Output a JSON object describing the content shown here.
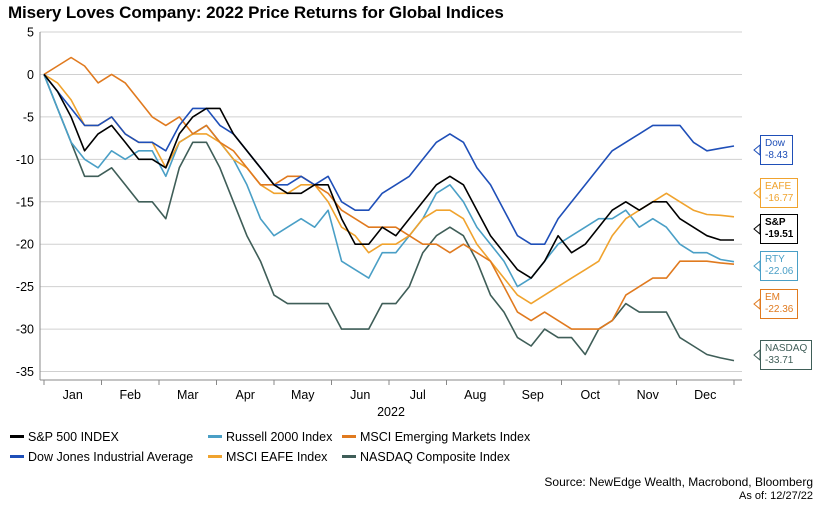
{
  "chart_data": {
    "type": "line",
    "title": "Misery Loves Company: 2022 Price Returns for Global Indices",
    "xlabel": "2022",
    "ylabel": "",
    "ylim": [
      -36,
      5
    ],
    "yticks": [
      5,
      0,
      -5,
      -10,
      -15,
      -20,
      -25,
      -30,
      -35
    ],
    "xticks": [
      "Jan",
      "Feb",
      "Mar",
      "Apr",
      "May",
      "Jun",
      "Jul",
      "Aug",
      "Sep",
      "Oct",
      "Nov",
      "Dec"
    ],
    "x_unit": "week of 2022 (0 = Jan 1, 51 = Dec 27)",
    "x": [
      0,
      1,
      2,
      3,
      4,
      5,
      6,
      7,
      8,
      9,
      10,
      11,
      12,
      13,
      14,
      15,
      16,
      17,
      18,
      19,
      20,
      21,
      22,
      23,
      24,
      25,
      26,
      27,
      28,
      29,
      30,
      31,
      32,
      33,
      34,
      35,
      36,
      37,
      38,
      39,
      40,
      41,
      42,
      43,
      44,
      45,
      46,
      47,
      48,
      49,
      50,
      51
    ],
    "series": [
      {
        "name": "S&P 500 INDEX",
        "color": "#000000",
        "end_label": "S&P",
        "end_value": "-19.51",
        "values": [
          0,
          -2,
          -5,
          -9,
          -7,
          -6,
          -8,
          -10,
          -10,
          -11,
          -7,
          -5,
          -4,
          -4,
          -7,
          -9,
          -11,
          -13,
          -14,
          -14,
          -13,
          -13,
          -17,
          -20,
          -20,
          -18,
          -19,
          -17,
          -15,
          -13,
          -12,
          -13,
          -16,
          -19,
          -21,
          -23,
          -24,
          -22,
          -19,
          -21,
          -20,
          -18,
          -16,
          -15,
          -16,
          -15,
          -15,
          -17,
          -18,
          -19,
          -19.5,
          -19.51
        ]
      },
      {
        "name": "Russell 2000 Index",
        "color": "#4a9fc6",
        "end_label": "RTY",
        "end_value": "-22.06",
        "values": [
          0,
          -4,
          -8,
          -10,
          -11,
          -9,
          -10,
          -9,
          -9,
          -12,
          -8,
          -7,
          -6,
          -8,
          -10,
          -13,
          -17,
          -19,
          -18,
          -17,
          -18,
          -16,
          -22,
          -23,
          -24,
          -21,
          -21,
          -19,
          -17,
          -14,
          -13,
          -15,
          -18,
          -20,
          -22,
          -25,
          -24,
          -22,
          -20,
          -19,
          -18,
          -17,
          -17,
          -16,
          -18,
          -17,
          -18,
          -20,
          -21,
          -21,
          -21.8,
          -22.06
        ]
      },
      {
        "name": "MSCI Emerging Markets Index",
        "color": "#e07a1f",
        "end_label": "EM",
        "end_value": "-22.36",
        "values": [
          0,
          1,
          2,
          1,
          -1,
          0,
          -1,
          -3,
          -5,
          -6,
          -5,
          -7,
          -6,
          -8,
          -9,
          -11,
          -13,
          -13,
          -12,
          -12,
          -13,
          -14,
          -16,
          -17,
          -18,
          -18,
          -18,
          -19,
          -20,
          -20,
          -21,
          -20,
          -21,
          -22,
          -25,
          -28,
          -29,
          -28,
          -29,
          -30,
          -30,
          -30,
          -29,
          -26,
          -25,
          -24,
          -24,
          -22,
          -22,
          -22,
          -22.2,
          -22.36
        ]
      },
      {
        "name": "Dow Jones Industrial Average",
        "color": "#1f4fb8",
        "end_label": "Dow",
        "end_value": "-8.43",
        "values": [
          0,
          -2,
          -4,
          -6,
          -6,
          -5,
          -7,
          -8,
          -8,
          -9,
          -6,
          -4,
          -4,
          -6,
          -7,
          -9,
          -11,
          -13,
          -13,
          -12,
          -13,
          -12,
          -15,
          -16,
          -16,
          -14,
          -13,
          -12,
          -10,
          -8,
          -7,
          -8,
          -11,
          -13,
          -16,
          -19,
          -20,
          -20,
          -17,
          -15,
          -13,
          -11,
          -9,
          -8,
          -7,
          -6,
          -6,
          -6,
          -8,
          -9,
          -8.7,
          -8.43
        ]
      },
      {
        "name": "MSCI EAFE Index",
        "color": "#f0a32e",
        "end_label": "EAFE",
        "end_value": "-16.77",
        "values": [
          0,
          -1,
          -3,
          -6,
          -6,
          -5,
          -7,
          -8,
          -8,
          -11,
          -8,
          -7,
          -7,
          -8,
          -10,
          -11,
          -13,
          -14,
          -14,
          -13,
          -13,
          -15,
          -18,
          -19,
          -21,
          -20,
          -20,
          -19,
          -17,
          -16,
          -16,
          -17,
          -20,
          -22,
          -24,
          -26,
          -27,
          -26,
          -25,
          -24,
          -23,
          -22,
          -19,
          -17,
          -16,
          -15,
          -14,
          -15,
          -16,
          -16.5,
          -16.6,
          -16.77
        ]
      },
      {
        "name": "NASDAQ Composite Index",
        "color": "#3f5e58",
        "end_label": "NASDAQ",
        "end_value": "-33.71",
        "values": [
          0,
          -4,
          -8,
          -12,
          -12,
          -11,
          -13,
          -15,
          -15,
          -17,
          -11,
          -8,
          -8,
          -11,
          -15,
          -19,
          -22,
          -26,
          -27,
          -27,
          -27,
          -27,
          -30,
          -30,
          -30,
          -27,
          -27,
          -25,
          -21,
          -19,
          -18,
          -19,
          -22,
          -26,
          -28,
          -31,
          -32,
          -30,
          -31,
          -31,
          -33,
          -30,
          -29,
          -27,
          -28,
          -28,
          -28,
          -31,
          -32,
          -33,
          -33.4,
          -33.71
        ]
      }
    ]
  },
  "legend_order": [
    0,
    1,
    2,
    3,
    4,
    5
  ],
  "footer": {
    "source": "Source: NewEdge Wealth, Macrobond, Bloomberg",
    "as_of": "As of: 12/27/22"
  }
}
